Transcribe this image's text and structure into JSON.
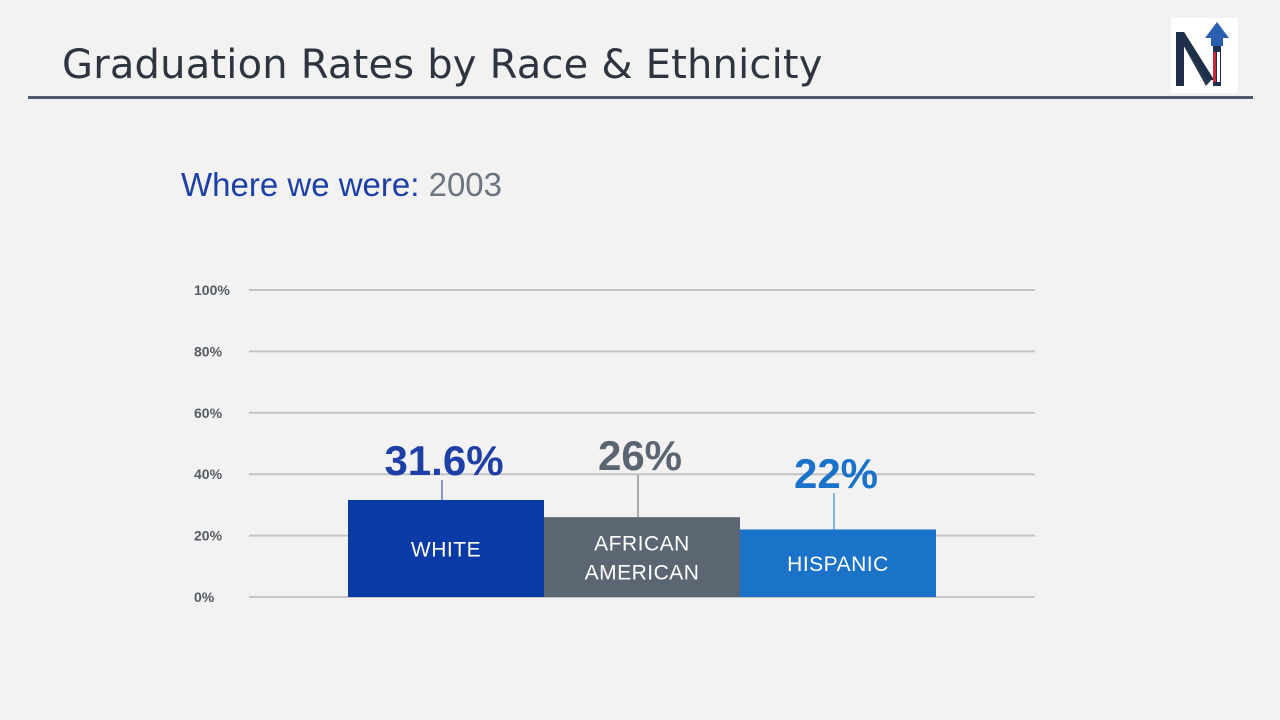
{
  "slide": {
    "title": "Graduation Rates by Race & Ethnicity",
    "subtitle_lead": "Where we were:",
    "subtitle_year": "2003"
  },
  "logo": {
    "icon": "n-arrow-logo-icon",
    "letter": "N"
  },
  "colors": {
    "title": "#2e3440",
    "rule": "#4f5b6a",
    "subtitle_lead": "#1d3fa6",
    "subtitle_year": "#6b7480",
    "grid": "#c4c4c4"
  },
  "chart_data": {
    "type": "bar",
    "ylim": [
      0,
      100
    ],
    "yticks": [
      0,
      20,
      40,
      60,
      80,
      100
    ],
    "ytick_labels": [
      "0%",
      "20%",
      "40%",
      "60%",
      "80%",
      "100%"
    ],
    "grid": true,
    "categories": [
      {
        "label_lines": [
          "WHITE"
        ],
        "value": 31.6,
        "value_label": "31.6%",
        "color": "#0a3aa6",
        "label_color": "#1d3fa6"
      },
      {
        "label_lines": [
          "AFRICAN",
          "AMERICAN"
        ],
        "value": 26,
        "value_label": "26%",
        "color": "#5c6672",
        "label_color": "#5c6672"
      },
      {
        "label_lines": [
          "HISPANIC"
        ],
        "value": 22,
        "value_label": "22%",
        "color": "#1a72c9",
        "label_color": "#1a72c9"
      }
    ]
  }
}
